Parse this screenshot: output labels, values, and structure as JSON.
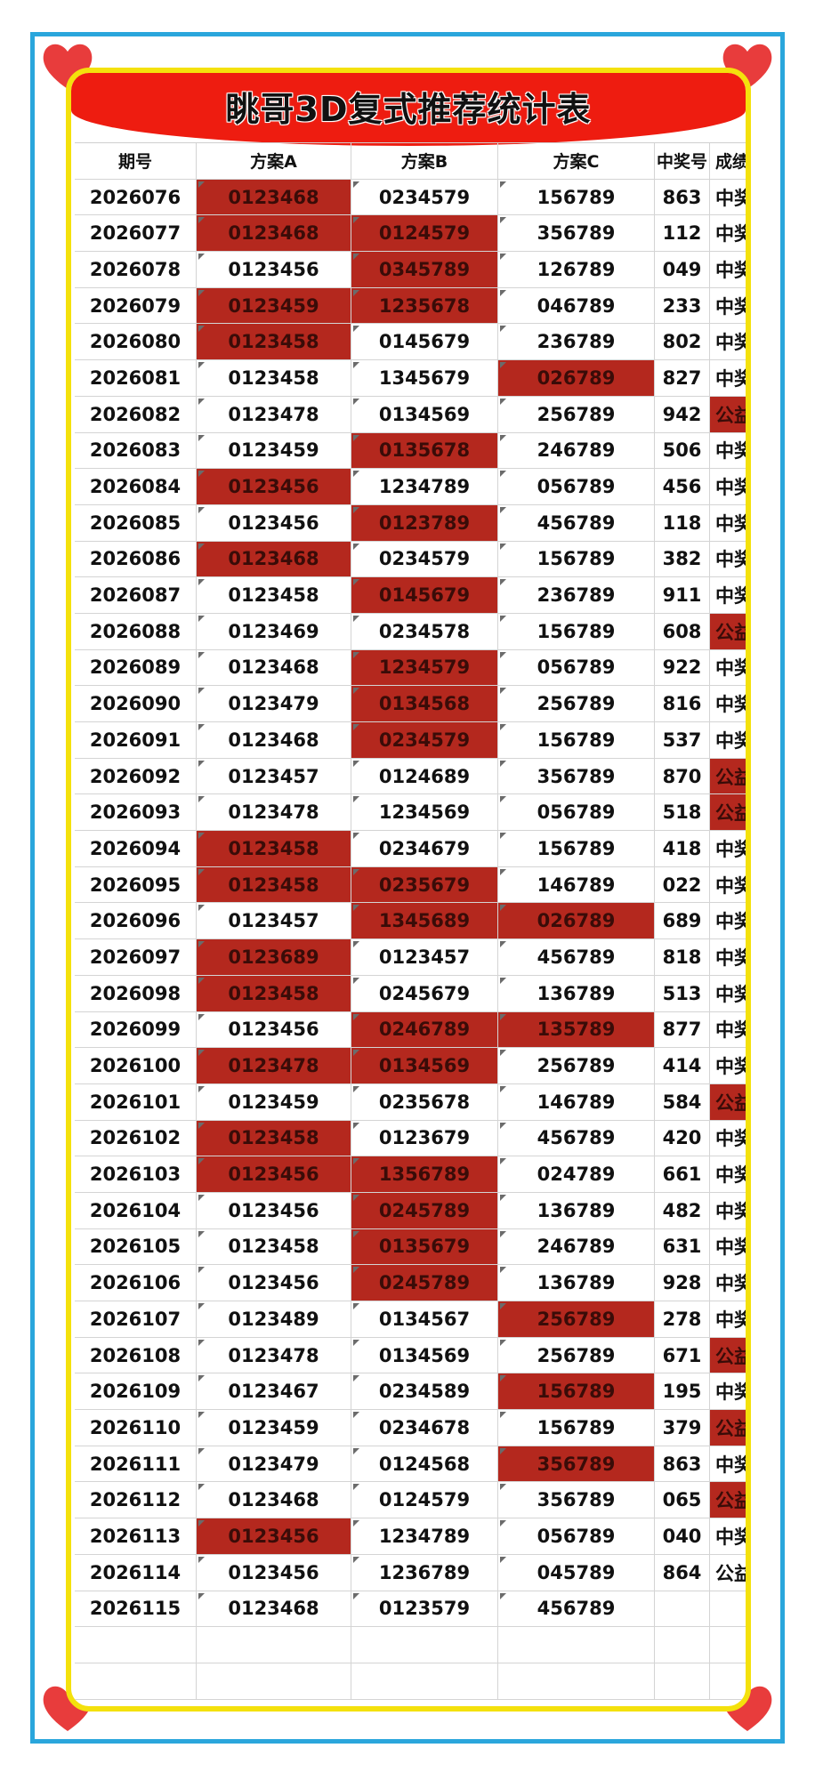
{
  "title": "眺哥3D复式推荐统计表",
  "colors": {
    "banner": "#ee1c10",
    "hit": "#b4281e",
    "frame": "#f4e10c",
    "border": "#2aa6dc",
    "heart": "#e83c3c"
  },
  "headers": [
    "期号",
    "方案A",
    "方案B",
    "方案C",
    "中奖号",
    "成绩"
  ],
  "rows": [
    {
      "id": "2026076",
      "a": "0123468",
      "b": "0234579",
      "c": "156789",
      "num": "863",
      "res": "中奖",
      "ha": true,
      "hb": false,
      "hc": false,
      "hr": false
    },
    {
      "id": "2026077",
      "a": "0123468",
      "b": "0124579",
      "c": "356789",
      "num": "112",
      "res": "中奖",
      "ha": true,
      "hb": true,
      "hc": false,
      "hr": false
    },
    {
      "id": "2026078",
      "a": "0123456",
      "b": "0345789",
      "c": "126789",
      "num": "049",
      "res": "中奖",
      "ha": false,
      "hb": true,
      "hc": false,
      "hr": false
    },
    {
      "id": "2026079",
      "a": "0123459",
      "b": "1235678",
      "c": "046789",
      "num": "233",
      "res": "中奖",
      "ha": true,
      "hb": true,
      "hc": false,
      "hr": false
    },
    {
      "id": "2026080",
      "a": "0123458",
      "b": "0145679",
      "c": "236789",
      "num": "802",
      "res": "中奖",
      "ha": true,
      "hb": false,
      "hc": false,
      "hr": false
    },
    {
      "id": "2026081",
      "a": "0123458",
      "b": "1345679",
      "c": "026789",
      "num": "827",
      "res": "中奖",
      "ha": false,
      "hb": false,
      "hc": true,
      "hr": false
    },
    {
      "id": "2026082",
      "a": "0123478",
      "b": "0134569",
      "c": "256789",
      "num": "942",
      "res": "公益",
      "ha": false,
      "hb": false,
      "hc": false,
      "hr": true
    },
    {
      "id": "2026083",
      "a": "0123459",
      "b": "0135678",
      "c": "246789",
      "num": "506",
      "res": "中奖",
      "ha": false,
      "hb": true,
      "hc": false,
      "hr": false
    },
    {
      "id": "2026084",
      "a": "0123456",
      "b": "1234789",
      "c": "056789",
      "num": "456",
      "res": "中奖",
      "ha": true,
      "hb": false,
      "hc": false,
      "hr": false
    },
    {
      "id": "2026085",
      "a": "0123456",
      "b": "0123789",
      "c": "456789",
      "num": "118",
      "res": "中奖",
      "ha": false,
      "hb": true,
      "hc": false,
      "hr": false
    },
    {
      "id": "2026086",
      "a": "0123468",
      "b": "0234579",
      "c": "156789",
      "num": "382",
      "res": "中奖",
      "ha": true,
      "hb": false,
      "hc": false,
      "hr": false
    },
    {
      "id": "2026087",
      "a": "0123458",
      "b": "0145679",
      "c": "236789",
      "num": "911",
      "res": "中奖",
      "ha": false,
      "hb": true,
      "hc": false,
      "hr": false
    },
    {
      "id": "2026088",
      "a": "0123469",
      "b": "0234578",
      "c": "156789",
      "num": "608",
      "res": "公益",
      "ha": false,
      "hb": false,
      "hc": false,
      "hr": true
    },
    {
      "id": "2026089",
      "a": "0123468",
      "b": "1234579",
      "c": "056789",
      "num": "922",
      "res": "中奖",
      "ha": false,
      "hb": true,
      "hc": false,
      "hr": false
    },
    {
      "id": "2026090",
      "a": "0123479",
      "b": "0134568",
      "c": "256789",
      "num": "816",
      "res": "中奖",
      "ha": false,
      "hb": true,
      "hc": false,
      "hr": false
    },
    {
      "id": "2026091",
      "a": "0123468",
      "b": "0234579",
      "c": "156789",
      "num": "537",
      "res": "中奖",
      "ha": false,
      "hb": true,
      "hc": false,
      "hr": false
    },
    {
      "id": "2026092",
      "a": "0123457",
      "b": "0124689",
      "c": "356789",
      "num": "870",
      "res": "公益",
      "ha": false,
      "hb": false,
      "hc": false,
      "hr": true
    },
    {
      "id": "2026093",
      "a": "0123478",
      "b": "1234569",
      "c": "056789",
      "num": "518",
      "res": "公益",
      "ha": false,
      "hb": false,
      "hc": false,
      "hr": true
    },
    {
      "id": "2026094",
      "a": "0123458",
      "b": "0234679",
      "c": "156789",
      "num": "418",
      "res": "中奖",
      "ha": true,
      "hb": false,
      "hc": false,
      "hr": false
    },
    {
      "id": "2026095",
      "a": "0123458",
      "b": "0235679",
      "c": "146789",
      "num": "022",
      "res": "中奖",
      "ha": true,
      "hb": true,
      "hc": false,
      "hr": false
    },
    {
      "id": "2026096",
      "a": "0123457",
      "b": "1345689",
      "c": "026789",
      "num": "689",
      "res": "中奖",
      "ha": false,
      "hb": true,
      "hc": true,
      "hr": false
    },
    {
      "id": "2026097",
      "a": "0123689",
      "b": "0123457",
      "c": "456789",
      "num": "818",
      "res": "中奖",
      "ha": true,
      "hb": false,
      "hc": false,
      "hr": false
    },
    {
      "id": "2026098",
      "a": "0123458",
      "b": "0245679",
      "c": "136789",
      "num": "513",
      "res": "中奖",
      "ha": true,
      "hb": false,
      "hc": false,
      "hr": false
    },
    {
      "id": "2026099",
      "a": "0123456",
      "b": "0246789",
      "c": "135789",
      "num": "877",
      "res": "中奖",
      "ha": false,
      "hb": true,
      "hc": true,
      "hr": false
    },
    {
      "id": "2026100",
      "a": "0123478",
      "b": "0134569",
      "c": "256789",
      "num": "414",
      "res": "中奖",
      "ha": true,
      "hb": true,
      "hc": false,
      "hr": false
    },
    {
      "id": "2026101",
      "a": "0123459",
      "b": "0235678",
      "c": "146789",
      "num": "584",
      "res": "公益",
      "ha": false,
      "hb": false,
      "hc": false,
      "hr": true
    },
    {
      "id": "2026102",
      "a": "0123458",
      "b": "0123679",
      "c": "456789",
      "num": "420",
      "res": "中奖",
      "ha": true,
      "hb": false,
      "hc": false,
      "hr": false
    },
    {
      "id": "2026103",
      "a": "0123456",
      "b": "1356789",
      "c": "024789",
      "num": "661",
      "res": "中奖",
      "ha": true,
      "hb": true,
      "hc": false,
      "hr": false
    },
    {
      "id": "2026104",
      "a": "0123456",
      "b": "0245789",
      "c": "136789",
      "num": "482",
      "res": "中奖",
      "ha": false,
      "hb": true,
      "hc": false,
      "hr": false
    },
    {
      "id": "2026105",
      "a": "0123458",
      "b": "0135679",
      "c": "246789",
      "num": "631",
      "res": "中奖",
      "ha": false,
      "hb": true,
      "hc": false,
      "hr": false
    },
    {
      "id": "2026106",
      "a": "0123456",
      "b": "0245789",
      "c": "136789",
      "num": "928",
      "res": "中奖",
      "ha": false,
      "hb": true,
      "hc": false,
      "hr": false
    },
    {
      "id": "2026107",
      "a": "0123489",
      "b": "0134567",
      "c": "256789",
      "num": "278",
      "res": "中奖",
      "ha": false,
      "hb": false,
      "hc": true,
      "hr": false
    },
    {
      "id": "2026108",
      "a": "0123478",
      "b": "0134569",
      "c": "256789",
      "num": "671",
      "res": "公益",
      "ha": false,
      "hb": false,
      "hc": false,
      "hr": true
    },
    {
      "id": "2026109",
      "a": "0123467",
      "b": "0234589",
      "c": "156789",
      "num": "195",
      "res": "中奖",
      "ha": false,
      "hb": false,
      "hc": true,
      "hr": false
    },
    {
      "id": "2026110",
      "a": "0123459",
      "b": "0234678",
      "c": "156789",
      "num": "379",
      "res": "公益",
      "ha": false,
      "hb": false,
      "hc": false,
      "hr": true
    },
    {
      "id": "2026111",
      "a": "0123479",
      "b": "0124568",
      "c": "356789",
      "num": "863",
      "res": "中奖",
      "ha": false,
      "hb": false,
      "hc": true,
      "hr": false
    },
    {
      "id": "2026112",
      "a": "0123468",
      "b": "0124579",
      "c": "356789",
      "num": "065",
      "res": "公益",
      "ha": false,
      "hb": false,
      "hc": false,
      "hr": true
    },
    {
      "id": "2026113",
      "a": "0123456",
      "b": "1234789",
      "c": "056789",
      "num": "040",
      "res": "中奖",
      "ha": true,
      "hb": false,
      "hc": false,
      "hr": false
    },
    {
      "id": "2026114",
      "a": "0123456",
      "b": "1236789",
      "c": "045789",
      "num": "864",
      "res": "公益",
      "ha": false,
      "hb": false,
      "hc": false,
      "hr": false
    },
    {
      "id": "2026115",
      "a": "0123468",
      "b": "0123579",
      "c": "456789",
      "num": "",
      "res": "",
      "ha": false,
      "hb": false,
      "hc": false,
      "hr": false
    }
  ],
  "empty_rows": 2
}
